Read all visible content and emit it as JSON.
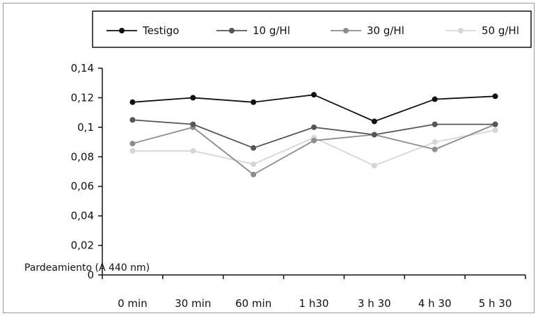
{
  "chart_data": {
    "type": "line",
    "title": "",
    "xlabel": "",
    "ylabel": "Pardeamiento (A 440 nm)",
    "categories": [
      "0 min",
      "30 min",
      "60 min",
      "1 h30",
      "3 h 30",
      "4 h 30",
      "5 h 30"
    ],
    "ylim": [
      0,
      0.14
    ],
    "yticks": [
      "0",
      "0,02",
      "0,04",
      "0,06",
      "0,08",
      "0,1",
      "0,12",
      "0,14"
    ],
    "grid": false,
    "legend_position": "top",
    "series": [
      {
        "name": "Testigo",
        "color": "#111111",
        "values": [
          0.117,
          0.12,
          0.117,
          0.122,
          0.104,
          0.119,
          0.121
        ]
      },
      {
        "name": "10 g/Hl",
        "color": "#555555",
        "values": [
          0.105,
          0.102,
          0.086,
          0.1,
          0.095,
          0.102,
          0.102
        ]
      },
      {
        "name": "30 g/Hl",
        "color": "#8c8c8c",
        "values": [
          0.089,
          0.1,
          0.068,
          0.091,
          0.095,
          0.085,
          0.102
        ]
      },
      {
        "name": "50 g/Hl",
        "color": "#d6d6d6",
        "values": [
          0.084,
          0.084,
          0.075,
          0.093,
          0.074,
          0.09,
          0.098
        ]
      }
    ]
  }
}
